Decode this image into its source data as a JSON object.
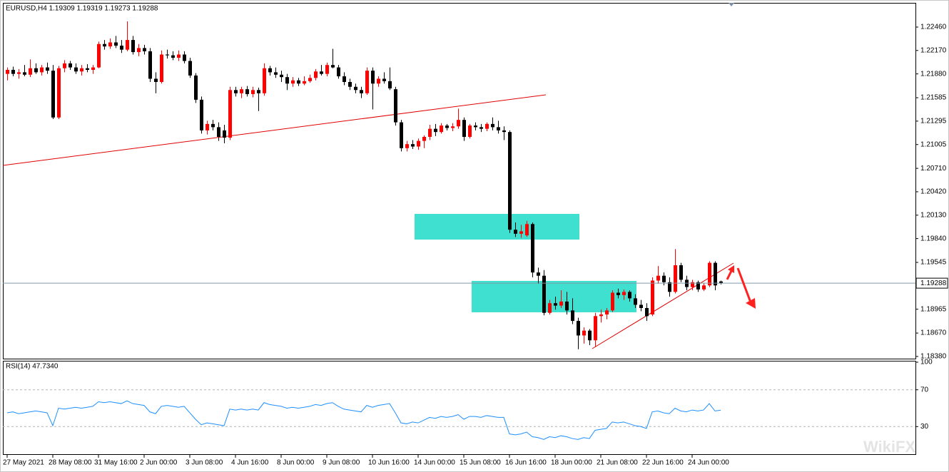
{
  "chart_data": [
    {
      "type": "candlestick",
      "title": "EURUSD,H4  1.19309 1.19319 1.19273 1.19288",
      "categories": [
        "27 May 2021",
        null,
        null,
        null,
        null,
        null,
        null,
        null,
        "28 May 08:00",
        null,
        null,
        null,
        null,
        null,
        null,
        null,
        "31 May 16:00",
        null,
        null,
        null,
        null,
        null,
        null,
        null,
        "2 Jun 00:00",
        null,
        null,
        null,
        null,
        null,
        null,
        null,
        "3 Jun 08:00",
        null,
        null,
        null,
        null,
        null,
        null,
        null,
        "4 Jun 16:00",
        null,
        null,
        null,
        null,
        null,
        null,
        null,
        "8 Jun 00:00",
        null,
        null,
        null,
        null,
        null,
        null,
        null,
        "9 Jun 08:00",
        null,
        null,
        null,
        null,
        null,
        null,
        null,
        "10 Jun 16:00",
        null,
        null,
        null,
        null,
        null,
        null,
        null,
        "14 Jun 00:00",
        null,
        null,
        null,
        null,
        null,
        null,
        null,
        "15 Jun 08:00",
        null,
        null,
        null,
        null,
        null,
        null,
        null,
        "16 Jun 16:00",
        null,
        null,
        null,
        null,
        null,
        null,
        null,
        "18 Jun 00:00",
        null,
        null,
        null,
        null,
        null,
        null,
        null,
        "21 Jun 08:00",
        null,
        null,
        null,
        null,
        null,
        null,
        null,
        "22 Jun 16:00",
        null,
        null,
        null,
        null,
        null,
        null,
        null,
        "24 Jun 00:00",
        null,
        null,
        null,
        null,
        null
      ],
      "ohlc": [
        [
          1.2188,
          1.2196,
          1.218,
          1.2193
        ],
        [
          1.2193,
          1.2197,
          1.2185,
          1.2188
        ],
        [
          1.2188,
          1.2194,
          1.2182,
          1.219
        ],
        [
          1.219,
          1.2199,
          1.2185,
          1.2187
        ],
        [
          1.2187,
          1.2206,
          1.2184,
          1.2195
        ],
        [
          1.2195,
          1.2201,
          1.2188,
          1.219
        ],
        [
          1.219,
          1.2199,
          1.2186,
          1.2196
        ],
        [
          1.2196,
          1.2202,
          1.2188,
          1.2192
        ],
        [
          1.2192,
          1.2199,
          1.2132,
          1.2134
        ],
        [
          1.2134,
          1.2198,
          1.2132,
          1.2195
        ],
        [
          1.2195,
          1.2205,
          1.219,
          1.2201
        ],
        [
          1.2201,
          1.2204,
          1.2193,
          1.2196
        ],
        [
          1.2196,
          1.2201,
          1.2188,
          1.2191
        ],
        [
          1.2191,
          1.2199,
          1.2186,
          1.2195
        ],
        [
          1.2195,
          1.22,
          1.219,
          1.2193
        ],
        [
          1.2193,
          1.2199,
          1.2188,
          1.2196
        ],
        [
          1.2196,
          1.2228,
          1.2195,
          1.2225
        ],
        [
          1.2225,
          1.223,
          1.2218,
          1.2222
        ],
        [
          1.2222,
          1.2232,
          1.2219,
          1.2227
        ],
        [
          1.2227,
          1.2235,
          1.222,
          1.2223
        ],
        [
          1.2223,
          1.223,
          1.2214,
          1.2218
        ],
        [
          1.2218,
          1.2253,
          1.2216,
          1.223
        ],
        [
          1.223,
          1.2235,
          1.2212,
          1.2215
        ],
        [
          1.2215,
          1.2225,
          1.221,
          1.222
        ],
        [
          1.222,
          1.2224,
          1.2212,
          1.2216
        ],
        [
          1.2216,
          1.222,
          1.2178,
          1.2182
        ],
        [
          1.2182,
          1.219,
          1.2164,
          1.2178
        ],
        [
          1.2178,
          1.2217,
          1.2176,
          1.2212
        ],
        [
          1.2212,
          1.2218,
          1.2207,
          1.2211
        ],
        [
          1.2211,
          1.2216,
          1.2205,
          1.2208
        ],
        [
          1.2208,
          1.2217,
          1.2204,
          1.2212
        ],
        [
          1.2212,
          1.2216,
          1.2201,
          1.2204
        ],
        [
          1.2204,
          1.2208,
          1.2183,
          1.2186
        ],
        [
          1.2186,
          1.2189,
          1.2152,
          1.2156
        ],
        [
          1.2156,
          1.216,
          1.2114,
          1.2118
        ],
        [
          1.2118,
          1.213,
          1.2113,
          1.2126
        ],
        [
          1.2126,
          1.2131,
          1.2118,
          1.2122
        ],
        [
          1.2122,
          1.2128,
          1.2105,
          1.211
        ],
        [
          1.2118,
          1.2125,
          1.2102,
          1.2109
        ],
        [
          1.2109,
          1.2172,
          1.2106,
          1.2168
        ],
        [
          1.2168,
          1.2172,
          1.216,
          1.2164
        ],
        [
          1.2164,
          1.2172,
          1.2158,
          1.2169
        ],
        [
          1.2169,
          1.2173,
          1.216,
          1.2163
        ],
        [
          1.2163,
          1.2172,
          1.2159,
          1.2168
        ],
        [
          1.2168,
          1.2171,
          1.2142,
          1.2164
        ],
        [
          1.2164,
          1.2201,
          1.2161,
          1.2195
        ],
        [
          1.2195,
          1.2198,
          1.2186,
          1.219
        ],
        [
          1.219,
          1.2196,
          1.2183,
          1.2187
        ],
        [
          1.2187,
          1.2192,
          1.2178,
          1.2184
        ],
        [
          1.2184,
          1.2188,
          1.2168,
          1.2176
        ],
        [
          1.2176,
          1.2184,
          1.2172,
          1.218
        ],
        [
          1.218,
          1.2183,
          1.2173,
          1.2176
        ],
        [
          1.2176,
          1.2185,
          1.2174,
          1.2179
        ],
        [
          1.2179,
          1.2187,
          1.2177,
          1.2183
        ],
        [
          1.2183,
          1.2194,
          1.218,
          1.2191
        ],
        [
          1.2191,
          1.2199,
          1.2186,
          1.2188
        ],
        [
          1.2188,
          1.2202,
          1.2185,
          1.2199
        ],
        [
          1.2199,
          1.2219,
          1.2195,
          1.2196
        ],
        [
          1.2196,
          1.2199,
          1.2182,
          1.2185
        ],
        [
          1.2185,
          1.219,
          1.2174,
          1.2178
        ],
        [
          1.2178,
          1.2182,
          1.2168,
          1.2172
        ],
        [
          1.2172,
          1.2176,
          1.2164,
          1.2168
        ],
        [
          1.2168,
          1.2172,
          1.2158,
          1.2164
        ],
        [
          1.2164,
          1.2196,
          1.2162,
          1.2192
        ],
        [
          1.2192,
          1.2196,
          1.2144,
          1.2176
        ],
        [
          1.2176,
          1.2185,
          1.2172,
          1.2182
        ],
        [
          1.2182,
          1.219,
          1.2176,
          1.2179
        ],
        [
          1.2179,
          1.2196,
          1.2168,
          1.217
        ],
        [
          1.2169,
          1.2172,
          1.2124,
          1.2128
        ],
        [
          1.2128,
          1.2131,
          1.2092,
          1.2096
        ],
        [
          1.2096,
          1.2105,
          1.2092,
          1.2101
        ],
        [
          1.2101,
          1.2106,
          1.2095,
          1.2098
        ],
        [
          1.2098,
          1.2108,
          1.2094,
          1.2105
        ],
        [
          1.2105,
          1.2112,
          1.2096,
          1.211
        ],
        [
          1.211,
          1.2125,
          1.2106,
          1.212
        ],
        [
          1.212,
          1.2126,
          1.2111,
          1.2116
        ],
        [
          1.2116,
          1.2127,
          1.2114,
          1.2124
        ],
        [
          1.2124,
          1.2126,
          1.2118,
          1.2121
        ],
        [
          1.2121,
          1.2127,
          1.2117,
          1.2123
        ],
        [
          1.2123,
          1.2145,
          1.212,
          1.2131
        ],
        [
          1.2131,
          1.2134,
          1.2105,
          1.211
        ],
        [
          1.211,
          1.2126,
          1.2108,
          1.2124
        ],
        [
          1.2124,
          1.2128,
          1.2118,
          1.2122
        ],
        [
          1.2122,
          1.2126,
          1.2116,
          1.212
        ],
        [
          1.212,
          1.2128,
          1.2117,
          1.2126
        ],
        [
          1.2126,
          1.2134,
          1.2118,
          1.2122
        ],
        [
          1.2122,
          1.213,
          1.2114,
          1.2118
        ],
        [
          1.2118,
          1.2123,
          1.2106,
          1.2116
        ],
        [
          1.2116,
          1.2118,
          1.1991,
          1.1995
        ],
        [
          1.1995,
          1.2004,
          1.1986,
          1.199
        ],
        [
          1.199,
          1.2001,
          1.1985,
          1.1993
        ],
        [
          1.1988,
          1.2006,
          1.1986,
          1.2002
        ],
        [
          1.2002,
          1.2004,
          1.1936,
          1.1942
        ],
        [
          1.1942,
          1.1948,
          1.1928,
          1.1938
        ],
        [
          1.1938,
          1.1945,
          1.1889,
          1.1892
        ],
        [
          1.1892,
          1.1908,
          1.189,
          1.1904
        ],
        [
          1.1904,
          1.1912,
          1.1896,
          1.1901
        ],
        [
          1.1901,
          1.192,
          1.1898,
          1.1906
        ],
        [
          1.1906,
          1.1918,
          1.189,
          1.1895
        ],
        [
          1.1895,
          1.191,
          1.1878,
          1.1882
        ],
        [
          1.1882,
          1.1886,
          1.1847,
          1.1864
        ],
        [
          1.1864,
          1.1874,
          1.1854,
          1.187
        ],
        [
          1.187,
          1.1872,
          1.1852,
          1.1858
        ],
        [
          1.1858,
          1.1892,
          1.185,
          1.1888
        ],
        [
          1.1888,
          1.1896,
          1.188,
          1.189
        ],
        [
          1.189,
          1.1898,
          1.1884,
          1.1895
        ],
        [
          1.1895,
          1.192,
          1.1893,
          1.1917
        ],
        [
          1.1917,
          1.1922,
          1.191,
          1.1914
        ],
        [
          1.1914,
          1.1921,
          1.1908,
          1.1918
        ],
        [
          1.1918,
          1.192,
          1.1906,
          1.191
        ],
        [
          1.191,
          1.1915,
          1.1898,
          1.1902
        ],
        [
          1.1902,
          1.1908,
          1.1894,
          1.1898
        ],
        [
          1.1898,
          1.1904,
          1.1882,
          1.1888
        ],
        [
          1.189,
          1.1936,
          1.1888,
          1.1932
        ],
        [
          1.1932,
          1.195,
          1.1928,
          1.1938
        ],
        [
          1.1938,
          1.1942,
          1.1926,
          1.193
        ],
        [
          1.193,
          1.1936,
          1.1912,
          1.1918
        ],
        [
          1.1918,
          1.1971,
          1.1916,
          1.1951
        ],
        [
          1.1951,
          1.1954,
          1.193,
          1.1933
        ],
        [
          1.1933,
          1.1938,
          1.192,
          1.1924
        ],
        [
          1.1924,
          1.1933,
          1.192,
          1.193
        ],
        [
          1.193,
          1.1932,
          1.1918,
          1.1921
        ],
        [
          1.1921,
          1.1929,
          1.1919,
          1.1926
        ],
        [
          1.1926,
          1.1956,
          1.1924,
          1.1954
        ],
        [
          1.1954,
          1.1956,
          1.192,
          1.1926
        ],
        [
          1.19309,
          1.19319,
          1.19273,
          1.19288
        ]
      ],
      "up_color": "#ff0000",
      "down_color": "#000000",
      "ylim": [
        1.18353,
        1.2276
      ],
      "yticks": [
        {
          "value": 1.2246,
          "label": "1.22460"
        },
        {
          "value": 1.2217,
          "label": "1.22170"
        },
        {
          "value": 1.2188,
          "label": "1.21880"
        },
        1.21585,
        1.21295,
        {
          "value": 1.21005,
          "label": "1.21005"
        },
        {
          "value": 1.2071,
          "label": "1.20710"
        },
        {
          "value": 1.2042,
          "label": "1.20420"
        },
        {
          "value": 1.2013,
          "label": "1.20130"
        },
        {
          "value": 1.1984,
          "label": "1.19840"
        },
        1.19545,
        1.18965,
        {
          "value": 1.1867,
          "label": "1.18670"
        },
        {
          "value": 1.1838,
          "label": "1.18380"
        }
      ],
      "current_price": 1.19288
    },
    {
      "type": "line",
      "title": "RSI(14) 47.7340",
      "color": "#1e90ff",
      "values": [
        45,
        46,
        44,
        45,
        46,
        47,
        46,
        45,
        31,
        50,
        49,
        50,
        51,
        50,
        51,
        52,
        57,
        56,
        57,
        56,
        55,
        58,
        55,
        54,
        53,
        46,
        44,
        52,
        53,
        52,
        51,
        52,
        45,
        38,
        32,
        34,
        33,
        32,
        31,
        49,
        48,
        49,
        48,
        49,
        48,
        56,
        54,
        53,
        52,
        50,
        51,
        50,
        51,
        52,
        54,
        53,
        55,
        56,
        52,
        49,
        48,
        47,
        46,
        53,
        51,
        53,
        54,
        55,
        45,
        34,
        33,
        35,
        34,
        37,
        40,
        39,
        41,
        40,
        41,
        43,
        38,
        41,
        41,
        40,
        42,
        41,
        40,
        40,
        22,
        21,
        22,
        24,
        19,
        18,
        16,
        19,
        18,
        20,
        19,
        17,
        16,
        18,
        17,
        26,
        27,
        28,
        35,
        34,
        35,
        33,
        31,
        30,
        28,
        46,
        47,
        45,
        44,
        50,
        47,
        46,
        48,
        47,
        48,
        55,
        47,
        47.734
      ],
      "ylim": [
        0,
        100
      ],
      "yticks": [
        30,
        70,
        100
      ],
      "grid": true
    }
  ],
  "watermark": "WikiFX"
}
